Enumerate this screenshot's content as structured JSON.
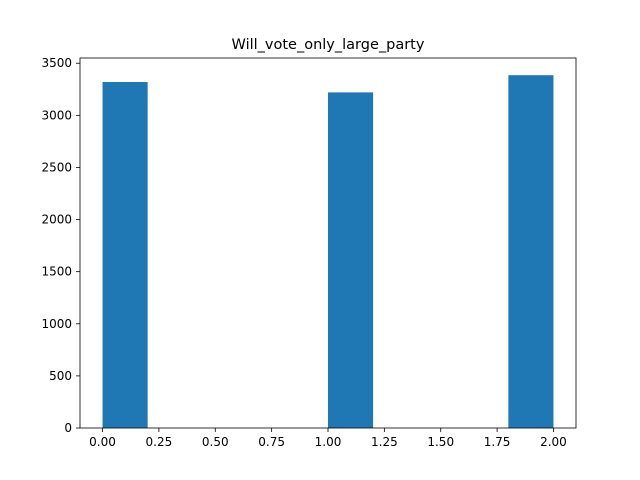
{
  "chart_data": {
    "type": "bar",
    "title": "Will_vote_only_large_party",
    "xlabel": "",
    "ylabel": "",
    "xlim": [
      -0.1,
      2.1
    ],
    "ylim": [
      0,
      3550
    ],
    "xticks": [
      0.0,
      0.25,
      0.5,
      0.75,
      1.0,
      1.25,
      1.5,
      1.75,
      2.0
    ],
    "xtick_labels": [
      "0.00",
      "0.25",
      "0.50",
      "0.75",
      "1.00",
      "1.25",
      "1.50",
      "1.75",
      "2.00"
    ],
    "yticks": [
      0,
      500,
      1000,
      1500,
      2000,
      2500,
      3000,
      3500
    ],
    "ytick_labels": [
      "0",
      "500",
      "1000",
      "1500",
      "2000",
      "2500",
      "3000",
      "3500"
    ],
    "bins": [
      {
        "x0": 0.0,
        "x1": 0.2,
        "value": 3320
      },
      {
        "x0": 1.0,
        "x1": 1.2,
        "value": 3220
      },
      {
        "x0": 1.8,
        "x1": 2.0,
        "value": 3385
      }
    ],
    "bar_color": "#1f77b4",
    "grid": false,
    "legend": false
  }
}
